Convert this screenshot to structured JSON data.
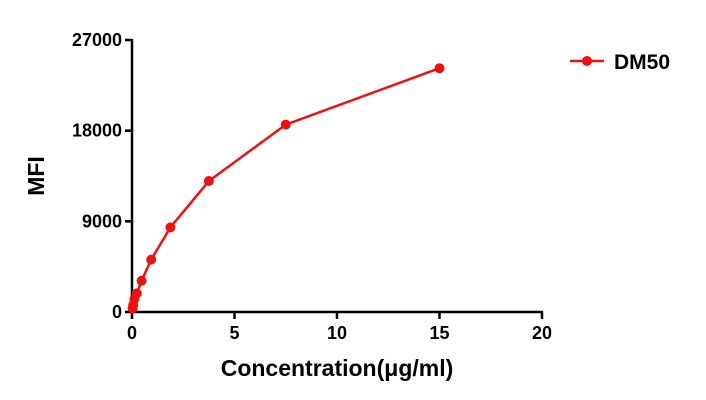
{
  "chart_data": {
    "type": "line",
    "title": "",
    "xlabel": "Concentration(μg/ml)",
    "ylabel": "MFI",
    "xlim": [
      0,
      20
    ],
    "ylim": [
      0,
      27000
    ],
    "xticks": [
      "0",
      "5",
      "10",
      "15",
      "20"
    ],
    "yticks": [
      "0",
      "9000",
      "18000",
      "27000"
    ],
    "grid": false,
    "legend_position": "top-right",
    "series": [
      {
        "name": "DM50",
        "color": "#ee1111",
        "marker": "circle",
        "x": [
          0.029,
          0.059,
          0.117,
          0.234,
          0.469,
          0.9375,
          1.875,
          3.75,
          7.5,
          15
        ],
        "y": [
          350,
          700,
          1300,
          1850,
          3100,
          5200,
          8400,
          13000,
          18600,
          24200
        ]
      }
    ]
  }
}
